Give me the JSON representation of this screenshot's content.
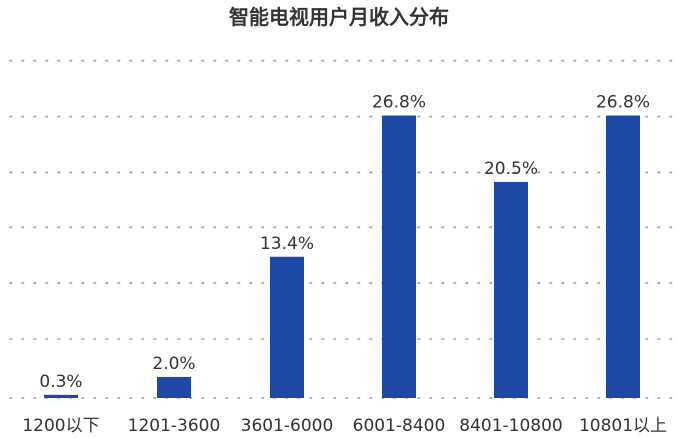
{
  "chart_data": {
    "type": "bar",
    "title": "智能电视用户月收入分布",
    "categories": [
      "1200以下",
      "1201-3600",
      "3601-6000",
      "6001-8400",
      "8401-10800",
      "10801以上"
    ],
    "values": [
      0.3,
      2.0,
      13.4,
      26.8,
      20.5,
      26.8
    ],
    "data_labels": [
      "0.3%",
      "2.0%",
      "13.4%",
      "26.8%",
      "20.5%",
      "26.8%"
    ],
    "ylim": [
      0,
      30
    ],
    "grid": true,
    "legend": "none",
    "bar_color": "#1f49a6"
  }
}
